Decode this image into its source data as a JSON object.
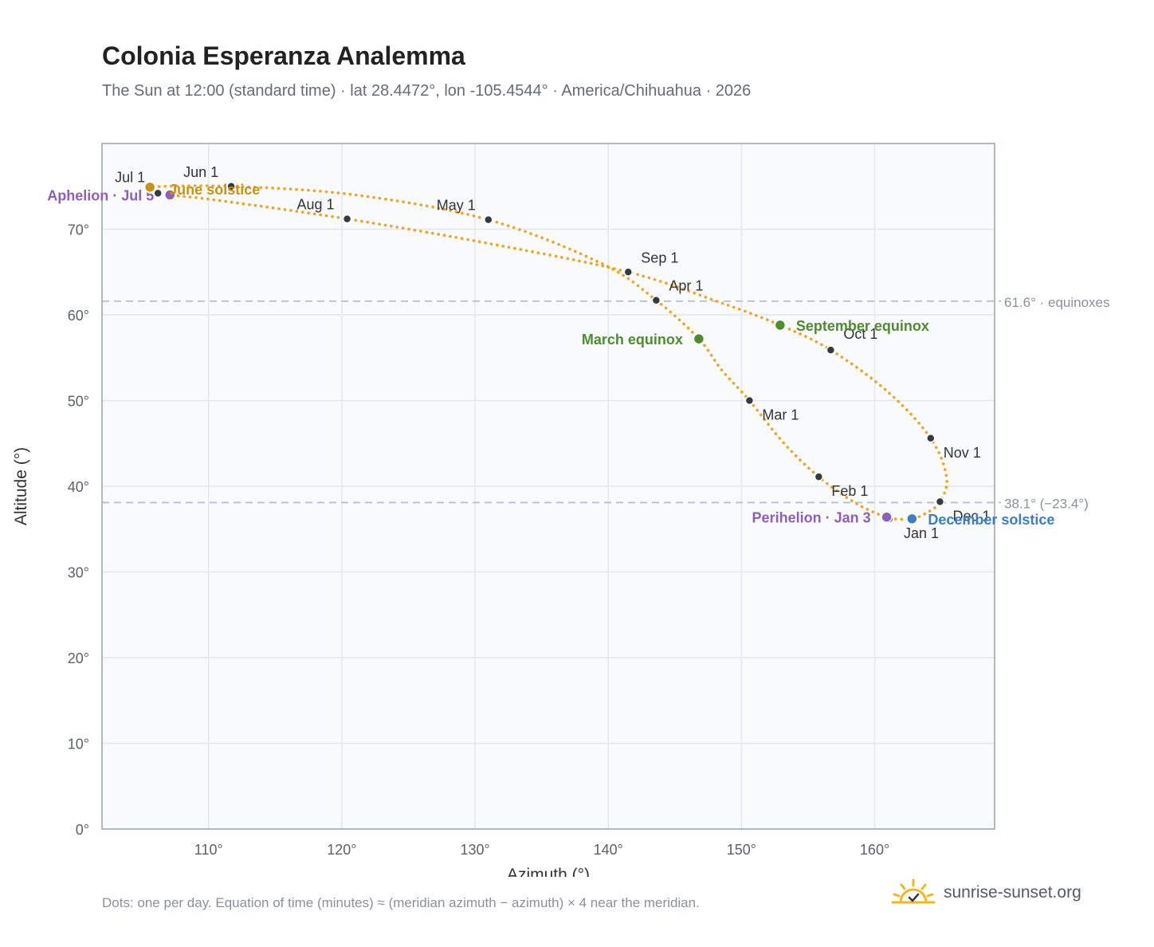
{
  "title": "Colonia Esperanza Analemma",
  "subtitle": "The Sun at 12:00 (standard time) · lat 28.4472°, lon -105.4544° · America/Chihuahua · 2026",
  "footnote": "Dots: one per day. Equation of time (minutes) ≈ (meridian azimuth − azimuth) × 4 near the meridian.",
  "brand": {
    "name": "sunrise-sunset.org",
    "icon": "sun-icon"
  },
  "colors": {
    "curve": "#f0a420",
    "month_dot": "#333a40",
    "aphelion": "#8f5fb8",
    "perihelion": "#8f5fb8",
    "equinox": "#4e8c2f",
    "june_solstice": "#c8920f",
    "december_solstice": "#3a7fc4",
    "grid": "#e3e8ee",
    "plot_bg": "#f8fafc",
    "reference": "#b8c2cc"
  },
  "chart_data": {
    "type": "scatter",
    "xlabel": "Azimuth (°)",
    "ylabel": "Altitude (°)",
    "xlim": [
      102,
      169
    ],
    "ylim": [
      0,
      80
    ],
    "x_ticks": [
      110,
      120,
      130,
      140,
      150,
      160
    ],
    "y_ticks": [
      0,
      10,
      20,
      30,
      40,
      50,
      60,
      70
    ],
    "x_tick_labels": [
      "110°",
      "120°",
      "130°",
      "140°",
      "150°",
      "160°"
    ],
    "y_tick_labels": [
      "0°",
      "10°",
      "20°",
      "30°",
      "40°",
      "50°",
      "60°",
      "70°"
    ],
    "grid": true,
    "curve": [
      {
        "date": "Jan 1",
        "azimuth": 161.1,
        "altitude": 36.2
      },
      {
        "date": "Jan 15",
        "azimuth": 158.6,
        "altitude": 38.0
      },
      {
        "date": "Feb 1",
        "azimuth": 155.8,
        "altitude": 41.1
      },
      {
        "date": "Feb 15",
        "azimuth": 153.2,
        "altitude": 45.0
      },
      {
        "date": "Mar 1",
        "azimuth": 150.6,
        "altitude": 50.0
      },
      {
        "date": "Mar 10",
        "azimuth": 148.5,
        "altitude": 53.6
      },
      {
        "date": "Mar 20",
        "azimuth": 146.8,
        "altitude": 57.2
      },
      {
        "date": "Apr 1",
        "azimuth": 143.6,
        "altitude": 61.7
      },
      {
        "date": "Apr 15",
        "azimuth": 139.5,
        "altitude": 66.0
      },
      {
        "date": "May 1",
        "azimuth": 131.0,
        "altitude": 71.1
      },
      {
        "date": "May 15",
        "azimuth": 121.0,
        "altitude": 74.0
      },
      {
        "date": "Jun 1",
        "azimuth": 111.7,
        "altitude": 75.0
      },
      {
        "date": "Jun 21",
        "azimuth": 105.6,
        "altitude": 74.9
      },
      {
        "date": "Jul 1",
        "azimuth": 106.2,
        "altitude": 74.2
      },
      {
        "date": "Jul 5",
        "azimuth": 107.1,
        "altitude": 74.0
      },
      {
        "date": "Jul 15",
        "azimuth": 111.0,
        "altitude": 73.3
      },
      {
        "date": "Aug 1",
        "azimuth": 120.4,
        "altitude": 71.2
      },
      {
        "date": "Aug 15",
        "azimuth": 131.5,
        "altitude": 68.2
      },
      {
        "date": "Sep 1",
        "azimuth": 141.5,
        "altitude": 65.0
      },
      {
        "date": "Sep 15",
        "azimuth": 148.5,
        "altitude": 61.4
      },
      {
        "date": "Sep 22",
        "azimuth": 152.9,
        "altitude": 58.8
      },
      {
        "date": "Oct 1",
        "azimuth": 156.7,
        "altitude": 55.9
      },
      {
        "date": "Oct 15",
        "azimuth": 161.0,
        "altitude": 51.0
      },
      {
        "date": "Nov 1",
        "azimuth": 164.2,
        "altitude": 45.6
      },
      {
        "date": "Nov 15",
        "azimuth": 165.4,
        "altitude": 41.0
      },
      {
        "date": "Dec 1",
        "azimuth": 164.9,
        "altitude": 38.2
      },
      {
        "date": "Dec 10",
        "azimuth": 164.0,
        "altitude": 37.0
      },
      {
        "date": "Dec 21",
        "azimuth": 162.8,
        "altitude": 36.2
      },
      {
        "date": "Dec 31",
        "azimuth": 161.2,
        "altitude": 36.2
      }
    ],
    "months": [
      {
        "label": "Jan 1",
        "azimuth": 161.1,
        "altitude": 36.2,
        "anchor": "start",
        "dx": 18,
        "dy": 24
      },
      {
        "label": "Feb 1",
        "azimuth": 155.8,
        "altitude": 41.1,
        "anchor": "start",
        "dx": 16,
        "dy": 24
      },
      {
        "label": "Mar 1",
        "azimuth": 150.6,
        "altitude": 50.0,
        "anchor": "start",
        "dx": 16,
        "dy": 24
      },
      {
        "label": "Apr 1",
        "azimuth": 143.6,
        "altitude": 61.7,
        "anchor": "start",
        "dx": 16,
        "dy": -12
      },
      {
        "label": "May 1",
        "azimuth": 131.0,
        "altitude": 71.1,
        "anchor": "end",
        "dx": -16,
        "dy": -12
      },
      {
        "label": "Jun 1",
        "azimuth": 111.7,
        "altitude": 75.0,
        "anchor": "end",
        "dx": -16,
        "dy": -12
      },
      {
        "label": "Jul 1",
        "azimuth": 106.2,
        "altitude": 74.2,
        "anchor": "end",
        "dx": -16,
        "dy": -14
      },
      {
        "label": "Aug 1",
        "azimuth": 120.4,
        "altitude": 71.2,
        "anchor": "end",
        "dx": -16,
        "dy": -12
      },
      {
        "label": "Sep 1",
        "azimuth": 141.5,
        "altitude": 65.0,
        "anchor": "start",
        "dx": 16,
        "dy": -12
      },
      {
        "label": "Oct 1",
        "azimuth": 156.7,
        "altitude": 55.9,
        "anchor": "start",
        "dx": 16,
        "dy": -14
      },
      {
        "label": "Nov 1",
        "azimuth": 164.2,
        "altitude": 45.6,
        "anchor": "start",
        "dx": 16,
        "dy": 24
      },
      {
        "label": "Dec 1",
        "azimuth": 164.9,
        "altitude": 38.2,
        "anchor": "start",
        "dx": 16,
        "dy": 24
      }
    ],
    "events": [
      {
        "label": "Aphelion · Jul 5",
        "azimuth": 107.1,
        "altitude": 74.0,
        "color_key": "aphelion",
        "anchor": "end",
        "dx": -20,
        "dy": 7
      },
      {
        "label": "June solstice",
        "azimuth": 105.6,
        "altitude": 74.9,
        "color_key": "june_solstice",
        "anchor": "start",
        "dx": 24,
        "dy": 9
      },
      {
        "label": "March equinox",
        "azimuth": 146.8,
        "altitude": 57.2,
        "color_key": "equinox",
        "anchor": "end",
        "dx": -20,
        "dy": 7
      },
      {
        "label": "September equinox",
        "azimuth": 152.9,
        "altitude": 58.8,
        "color_key": "equinox",
        "anchor": "start",
        "dx": 20,
        "dy": 7
      },
      {
        "label": "Perihelion · Jan 3",
        "azimuth": 160.9,
        "altitude": 36.4,
        "color_key": "perihelion",
        "anchor": "end",
        "dx": -20,
        "dy": 7
      },
      {
        "label": "December solstice",
        "azimuth": 162.8,
        "altitude": 36.2,
        "color_key": "december_solstice",
        "anchor": "start",
        "dx": 20,
        "dy": 7
      }
    ],
    "reference_lines": [
      {
        "altitude": 61.6,
        "label": "61.6° · equinoxes"
      },
      {
        "altitude": 38.1,
        "label": "38.1° (−23.4°)"
      }
    ]
  }
}
